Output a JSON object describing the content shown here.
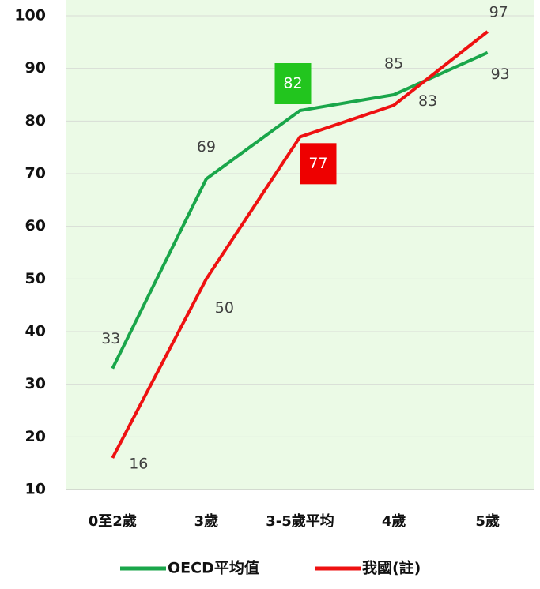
{
  "chart_data": {
    "type": "line",
    "categories": [
      "0至2歲",
      "3歲",
      "3-5歲平均",
      "4歲",
      "5歲"
    ],
    "series": [
      {
        "name": "OECD平均值",
        "color": "#1aa64a",
        "values": [
          33,
          69,
          82,
          85,
          93
        ]
      },
      {
        "name": "我國(註)",
        "color": "#ee1111",
        "values": [
          16,
          50,
          77,
          83,
          97
        ]
      }
    ],
    "ylim": [
      10,
      100
    ],
    "yticks": [
      10,
      20,
      30,
      40,
      50,
      60,
      70,
      80,
      90,
      100
    ],
    "grid": true,
    "legend": "bottom"
  }
}
